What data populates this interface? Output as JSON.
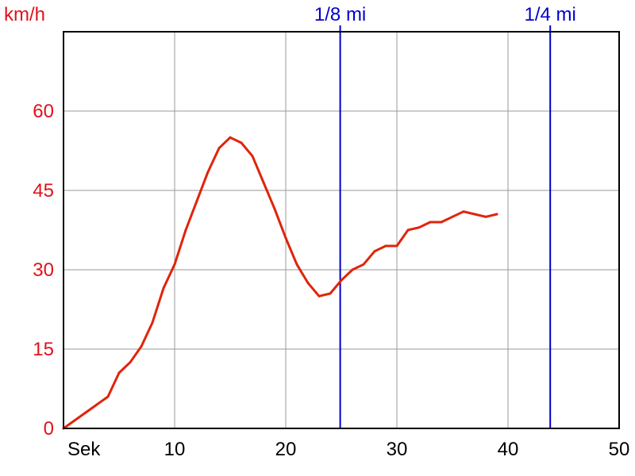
{
  "chart_data": {
    "type": "line",
    "y_unit_label": "km/h",
    "x_unit_label": "Sek",
    "xlim": [
      0,
      50
    ],
    "ylim": [
      0,
      75
    ],
    "x_ticks": [
      {
        "value": 10,
        "label": "10"
      },
      {
        "value": 20,
        "label": "20"
      },
      {
        "value": 30,
        "label": "30"
      },
      {
        "value": 40,
        "label": "40"
      },
      {
        "value": 50,
        "label": "50"
      }
    ],
    "y_ticks": [
      {
        "value": 0,
        "label": "0"
      },
      {
        "value": 15,
        "label": "15"
      },
      {
        "value": 30,
        "label": "30"
      },
      {
        "value": 45,
        "label": "45"
      },
      {
        "value": 60,
        "label": "60"
      }
    ],
    "grid": true,
    "markers": [
      {
        "x": 24.9,
        "label": "1/8 mi"
      },
      {
        "x": 43.8,
        "label": "1/4 mi"
      }
    ],
    "series": [
      {
        "color": "#e0240a",
        "x": [
          0,
          1,
          2,
          3,
          4,
          5,
          5.5,
          6,
          7,
          8,
          9,
          10,
          11,
          12,
          13,
          14,
          15,
          16,
          17,
          18,
          19,
          20,
          21,
          22,
          23,
          24,
          25,
          26,
          27,
          28,
          29,
          30,
          31,
          32,
          33,
          34,
          35,
          36,
          37,
          38,
          39
        ],
        "y": [
          0,
          1.5,
          3,
          4.5,
          6,
          10.5,
          11.5,
          12.5,
          15.5,
          20,
          26.5,
          31,
          37.5,
          43,
          48.5,
          53,
          55,
          54,
          51.5,
          46.5,
          41.5,
          36,
          31,
          27.5,
          25,
          25.5,
          28,
          30,
          31,
          33.5,
          34.5,
          34.5,
          37.5,
          38,
          39,
          39,
          40,
          41,
          40.5,
          40,
          40.5
        ]
      }
    ]
  }
}
